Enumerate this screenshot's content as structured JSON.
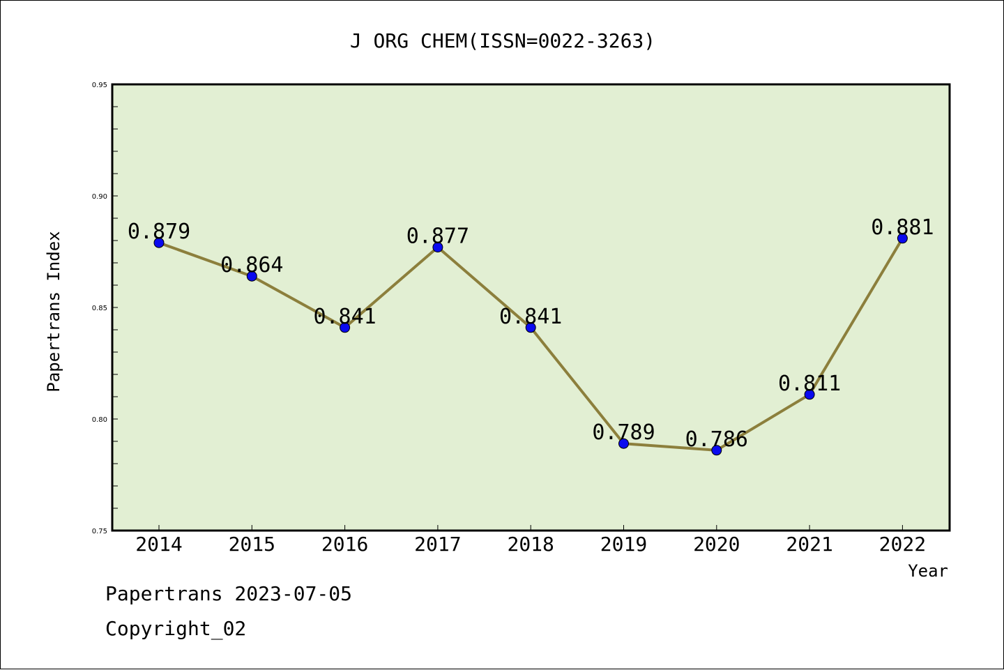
{
  "colors": {
    "plot_background": "#e2efd3",
    "line": "#8c7f3c",
    "marker": "#0a0aef",
    "frame": "#000000"
  },
  "chart_data": {
    "type": "line",
    "title": "J ORG CHEM(ISSN=0022-3263)",
    "xlabel": "Year",
    "ylabel": "Papertrans Index",
    "x": [
      "2014",
      "2015",
      "2016",
      "2017",
      "2018",
      "2019",
      "2020",
      "2021",
      "2022"
    ],
    "series": [
      {
        "values": [
          0.879,
          0.864,
          0.841,
          0.877,
          0.841,
          0.789,
          0.786,
          0.811,
          0.881
        ],
        "labels": [
          "0.879",
          "0.864",
          "0.841",
          "0.877",
          "0.841",
          "0.789",
          "0.786",
          "0.811",
          "0.881"
        ]
      }
    ],
    "ylim": [
      0.75,
      0.95
    ],
    "yticks": [
      "0.75",
      "0.80",
      "0.85",
      "0.90",
      "0.95"
    ],
    "grid": false,
    "legend": "none"
  },
  "footer": {
    "line1": "Papertrans 2023-07-05",
    "line2": "Copyright_02"
  }
}
